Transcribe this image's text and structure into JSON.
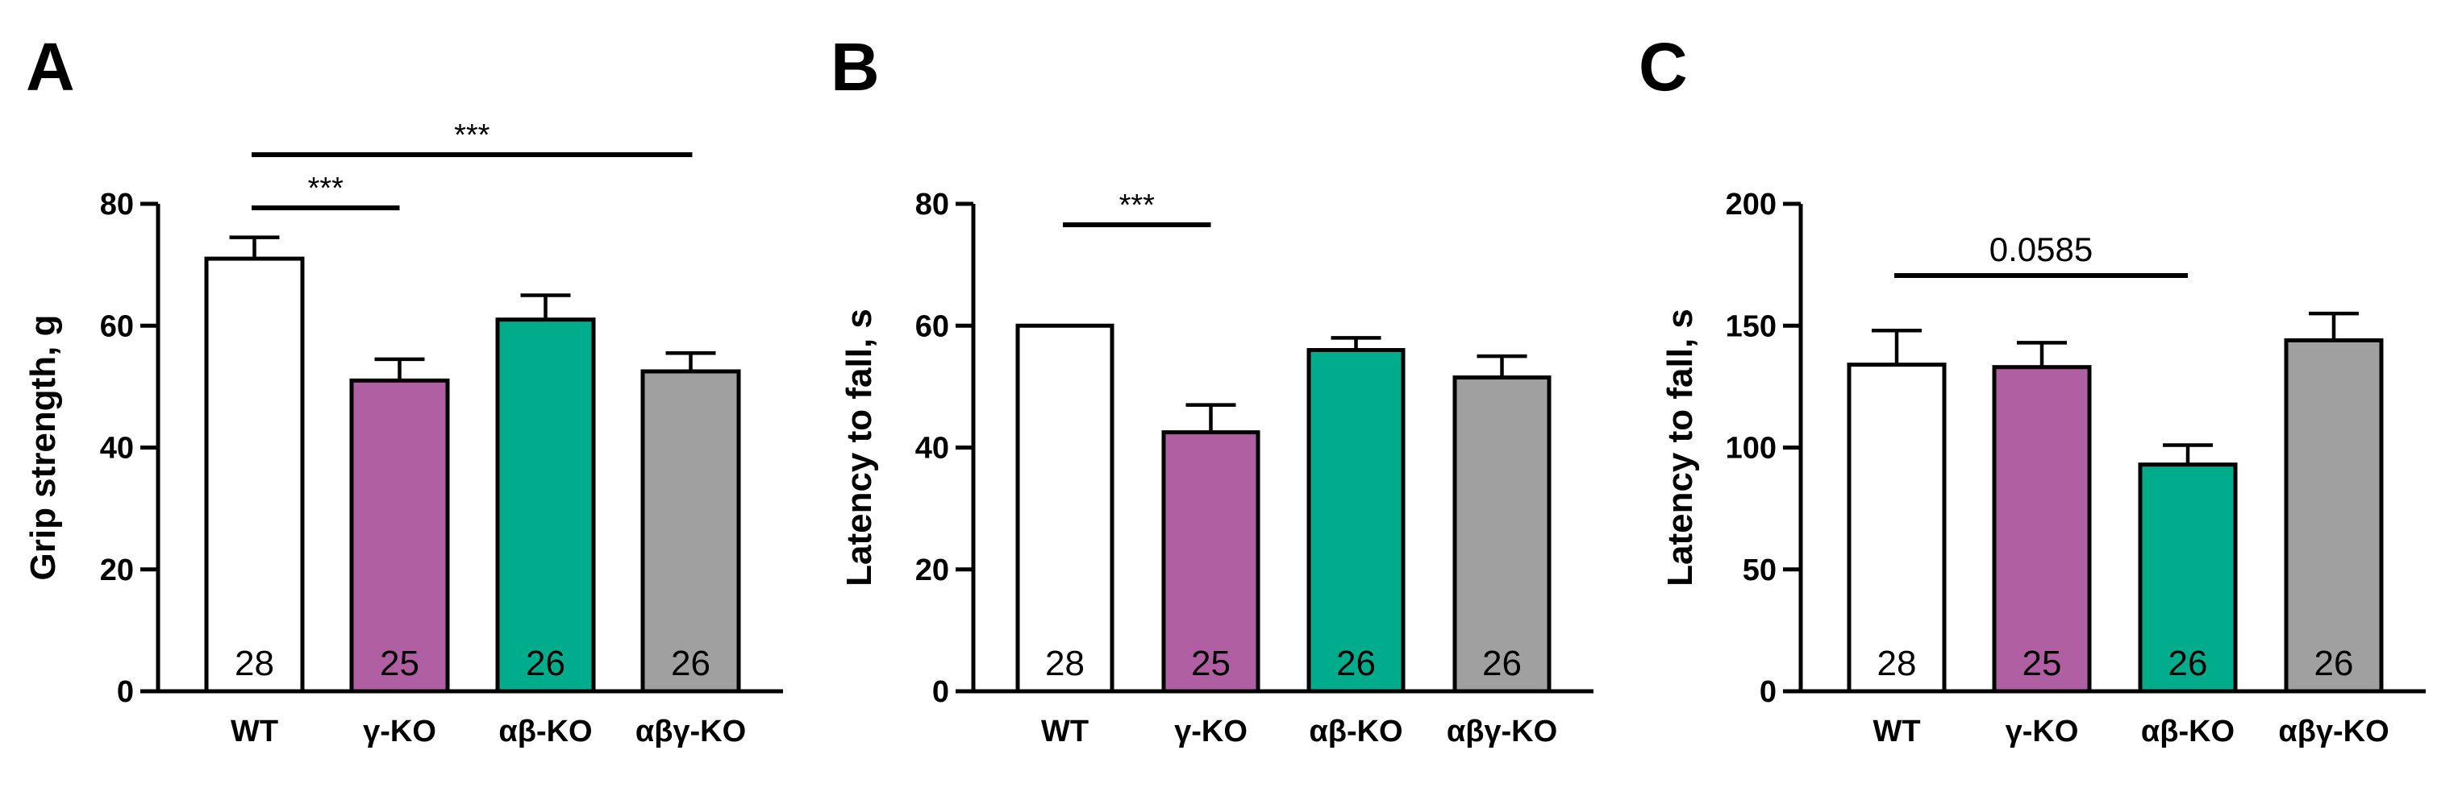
{
  "colors": {
    "WT": "#ffffff",
    "γ-KO": "#b060a2",
    "αβ-KO": "#00ac8c",
    "αβγ-KO": "#a0a0a1",
    "stroke": "#000000"
  },
  "chart_data": [
    {
      "type": "bar",
      "panel": "A",
      "ylabel": "Grip strength, g",
      "ylim": [
        0,
        80
      ],
      "yticks": [
        0,
        20,
        40,
        60,
        80
      ],
      "categories": [
        "WT",
        "γ-KO",
        "αβ-KO",
        "αβγ-KO"
      ],
      "values": [
        71,
        51,
        61,
        52.5
      ],
      "error_upper": [
        74.5,
        54.5,
        65,
        55.5
      ],
      "n": [
        "28",
        "25",
        "26",
        "26"
      ],
      "significance": [
        {
          "from": "WT",
          "to": "γ-KO",
          "label": "***"
        },
        {
          "from": "WT",
          "to": "αβγ-KO",
          "label": "***"
        }
      ]
    },
    {
      "type": "bar",
      "panel": "B",
      "ylabel": "Latency to fall, s",
      "ylim": [
        0,
        80
      ],
      "yticks": [
        0,
        20,
        40,
        60,
        80
      ],
      "categories": [
        "WT",
        "γ-KO",
        "αβ-KO",
        "αβγ-KO"
      ],
      "values": [
        60,
        42.5,
        56,
        51.5
      ],
      "error_upper": [
        60,
        47,
        58,
        55
      ],
      "n": [
        "28",
        "25",
        "26",
        "26"
      ],
      "significance": [
        {
          "from": "WT",
          "to": "γ-KO",
          "label": "***"
        }
      ]
    },
    {
      "type": "bar",
      "panel": "C",
      "ylabel": "Latency to fall, s",
      "ylim": [
        0,
        200
      ],
      "yticks": [
        0,
        50,
        100,
        150,
        200
      ],
      "categories": [
        "WT",
        "γ-KO",
        "αβ-KO",
        "αβγ-KO"
      ],
      "values": [
        134,
        133,
        93,
        144
      ],
      "error_upper": [
        148,
        143,
        101,
        155
      ],
      "n": [
        "28",
        "25",
        "26",
        "26"
      ],
      "significance": [
        {
          "from": "WT",
          "to": "αβ-KO",
          "label": "0.0585"
        }
      ]
    }
  ]
}
